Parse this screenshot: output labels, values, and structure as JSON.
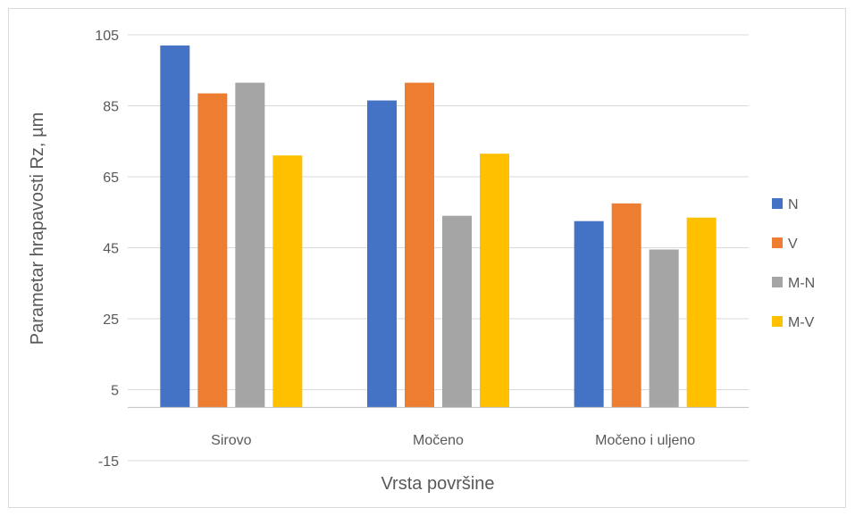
{
  "chart_data": {
    "type": "bar",
    "title": "",
    "xlabel": "Vrsta površine",
    "ylabel": "Parametar hrapavosti Rz, µm",
    "ylim": [
      -15,
      105
    ],
    "yticks": [
      105,
      85,
      65,
      45,
      25,
      5,
      -15
    ],
    "categories": [
      "Sirovo",
      "Močeno",
      "Močeno i uljeno"
    ],
    "grid": true,
    "legend_position": "right",
    "series": [
      {
        "name": "N",
        "color": "#4472C4",
        "values": [
          102,
          86.5,
          52.5
        ]
      },
      {
        "name": "V",
        "color": "#ED7D31",
        "values": [
          88.5,
          91.5,
          57.5
        ]
      },
      {
        "name": "M-N",
        "color": "#A5A5A5",
        "values": [
          91.5,
          54,
          44.5
        ]
      },
      {
        "name": "M-V",
        "color": "#FFC000",
        "values": [
          71,
          71.5,
          53.5
        ]
      }
    ]
  }
}
